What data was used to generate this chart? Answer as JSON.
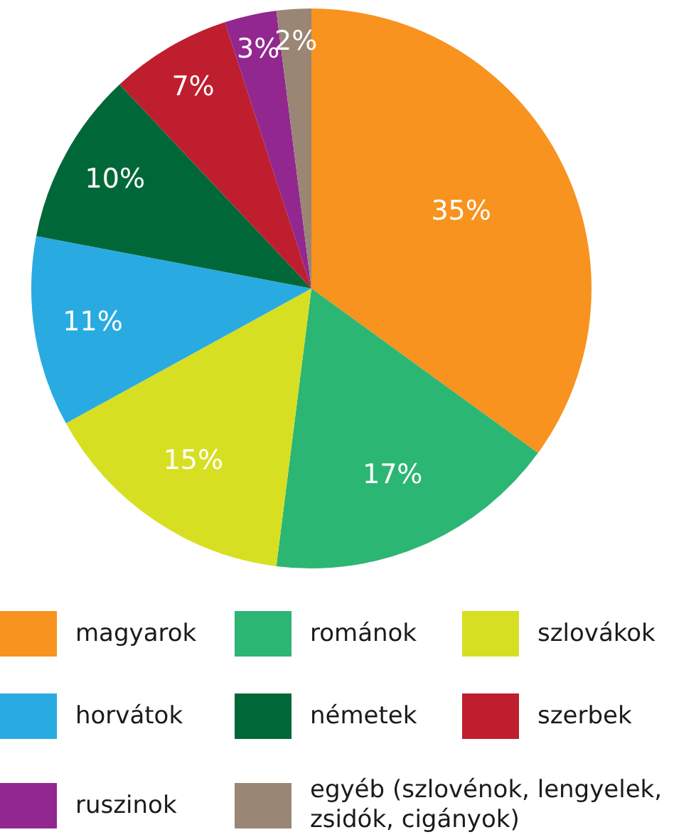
{
  "chart_data": {
    "type": "pie",
    "categories": [
      "magyarok",
      "románok",
      "szlovákok",
      "horvátok",
      "németek",
      "szerbek",
      "ruszinok",
      "egyéb (szlovénok, lengyelek, zsidók, cigányok)"
    ],
    "values": [
      35,
      17,
      15,
      11,
      10,
      7,
      3,
      2
    ],
    "colors": [
      "#f7931e",
      "#2bb673",
      "#d7df23",
      "#29abe2",
      "#006838",
      "#be1e2d",
      "#92278f",
      "#998675"
    ],
    "value_labels": [
      "35%",
      "17%",
      "15%",
      "11%",
      "10%",
      "7%",
      "3%",
      "2%"
    ],
    "legend": "bottom"
  }
}
